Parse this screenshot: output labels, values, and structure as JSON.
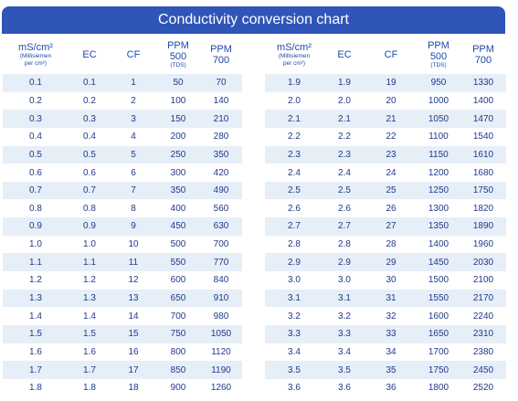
{
  "title": "Conductivity conversion chart",
  "headers": {
    "ms": "mS/cm²",
    "ms_sub_1": "(Millisiemen",
    "ms_sub_2": "per cm²)",
    "ec": "EC",
    "cf": "CF",
    "ppm500_1": "PPM",
    "ppm500_2": "500",
    "ppm500_sub": "(TDS)",
    "ppm700_1": "PPM",
    "ppm700_2": "700"
  },
  "left_rows": [
    [
      "0.1",
      "0.1",
      "1",
      "50",
      "70"
    ],
    [
      "0.2",
      "0.2",
      "2",
      "100",
      "140"
    ],
    [
      "0.3",
      "0.3",
      "3",
      "150",
      "210"
    ],
    [
      "0.4",
      "0.4",
      "4",
      "200",
      "280"
    ],
    [
      "0.5",
      "0.5",
      "5",
      "250",
      "350"
    ],
    [
      "0.6",
      "0.6",
      "6",
      "300",
      "420"
    ],
    [
      "0.7",
      "0.7",
      "7",
      "350",
      "490"
    ],
    [
      "0.8",
      "0.8",
      "8",
      "400",
      "560"
    ],
    [
      "0.9",
      "0.9",
      "9",
      "450",
      "630"
    ],
    [
      "1.0",
      "1.0",
      "10",
      "500",
      "700"
    ],
    [
      "1.1",
      "1.1",
      "11",
      "550",
      "770"
    ],
    [
      "1.2",
      "1.2",
      "12",
      "600",
      "840"
    ],
    [
      "1.3",
      "1.3",
      "13",
      "650",
      "910"
    ],
    [
      "1.4",
      "1.4",
      "14",
      "700",
      "980"
    ],
    [
      "1.5",
      "1.5",
      "15",
      "750",
      "1050"
    ],
    [
      "1.6",
      "1.6",
      "16",
      "800",
      "1120"
    ],
    [
      "1.7",
      "1.7",
      "17",
      "850",
      "1190"
    ],
    [
      "1.8",
      "1.8",
      "18",
      "900",
      "1260"
    ]
  ],
  "right_rows": [
    [
      "1.9",
      "1.9",
      "19",
      "950",
      "1330"
    ],
    [
      "2.0",
      "2.0",
      "20",
      "1000",
      "1400"
    ],
    [
      "2.1",
      "2.1",
      "21",
      "1050",
      "1470"
    ],
    [
      "2.2",
      "2.2",
      "22",
      "1100",
      "1540"
    ],
    [
      "2.3",
      "2.3",
      "23",
      "1150",
      "1610"
    ],
    [
      "2.4",
      "2.4",
      "24",
      "1200",
      "1680"
    ],
    [
      "2.5",
      "2.5",
      "25",
      "1250",
      "1750"
    ],
    [
      "2.6",
      "2.6",
      "26",
      "1300",
      "1820"
    ],
    [
      "2.7",
      "2.7",
      "27",
      "1350",
      "1890"
    ],
    [
      "2.8",
      "2.8",
      "28",
      "1400",
      "1960"
    ],
    [
      "2.9",
      "2.9",
      "29",
      "1450",
      "2030"
    ],
    [
      "3.0",
      "3.0",
      "30",
      "1500",
      "2100"
    ],
    [
      "3.1",
      "3.1",
      "31",
      "1550",
      "2170"
    ],
    [
      "3.2",
      "3.2",
      "32",
      "1600",
      "2240"
    ],
    [
      "3.3",
      "3.3",
      "33",
      "1650",
      "2310"
    ],
    [
      "3.4",
      "3.4",
      "34",
      "1700",
      "2380"
    ],
    [
      "3.5",
      "3.5",
      "35",
      "1750",
      "2450"
    ],
    [
      "3.6",
      "3.6",
      "36",
      "1800",
      "2520"
    ]
  ],
  "colors": {
    "title_bg": "#2f55b8",
    "band": "#e6eef8",
    "text": "#1f3a8a"
  }
}
